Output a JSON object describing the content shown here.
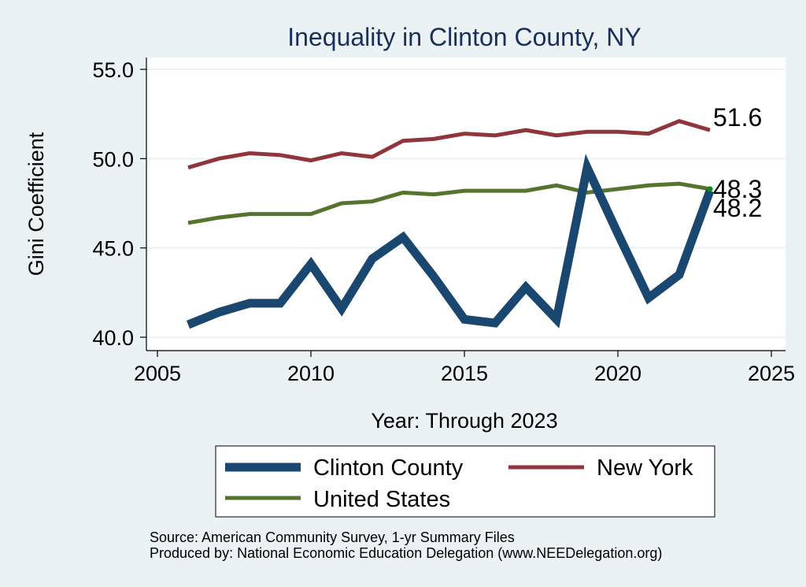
{
  "chart_data": {
    "type": "line",
    "title": "Inequality in Clinton County, NY",
    "xlabel": "Year: Through 2023",
    "ylabel": "Gini Coefficient",
    "xlim": [
      2005,
      2025
    ],
    "ylim": [
      40.0,
      55.0
    ],
    "x_ticks": [
      2005,
      2010,
      2015,
      2020,
      2025
    ],
    "y_ticks": [
      40.0,
      45.0,
      50.0,
      55.0
    ],
    "y_tick_labels": [
      "40.0",
      "45.0",
      "50.0",
      "55.0"
    ],
    "grid": true,
    "legend_position": "bottom",
    "series": [
      {
        "name": "Clinton County",
        "color": "#1a476f",
        "x": [
          2006,
          2007,
          2008,
          2009,
          2010,
          2011,
          2012,
          2013,
          2014,
          2015,
          2016,
          2017,
          2018,
          2019,
          2020,
          2021,
          2022,
          2023
        ],
        "values": [
          40.7,
          41.4,
          41.9,
          41.9,
          44.1,
          41.6,
          44.4,
          45.6,
          43.4,
          41.0,
          40.8,
          42.8,
          41.0,
          49.5,
          45.8,
          42.2,
          43.5,
          48.2
        ],
        "end_label": "48.2"
      },
      {
        "name": "New York",
        "color": "#90353b",
        "x": [
          2006,
          2007,
          2008,
          2009,
          2010,
          2011,
          2012,
          2013,
          2014,
          2015,
          2016,
          2017,
          2018,
          2019,
          2020,
          2021,
          2022,
          2023
        ],
        "values": [
          49.5,
          50.0,
          50.3,
          50.2,
          49.9,
          50.3,
          50.1,
          51.0,
          51.1,
          51.4,
          51.3,
          51.6,
          51.3,
          51.5,
          51.5,
          51.4,
          52.1,
          51.6
        ],
        "end_label": "51.6"
      },
      {
        "name": "United States",
        "color": "#55752f",
        "x": [
          2006,
          2007,
          2008,
          2009,
          2010,
          2011,
          2012,
          2013,
          2014,
          2015,
          2016,
          2017,
          2018,
          2019,
          2020,
          2021,
          2022,
          2023
        ],
        "values": [
          46.4,
          46.7,
          46.9,
          46.9,
          46.9,
          47.5,
          47.6,
          48.1,
          48.0,
          48.2,
          48.2,
          48.2,
          48.5,
          48.1,
          48.3,
          48.5,
          48.6,
          48.3
        ],
        "end_label": "48.3"
      }
    ],
    "source_lines": [
      "Source: American Community Survey, 1-yr Summary Files",
      "Produced by: National Economic Education Delegation (www.NEEDelegation.org)"
    ]
  }
}
